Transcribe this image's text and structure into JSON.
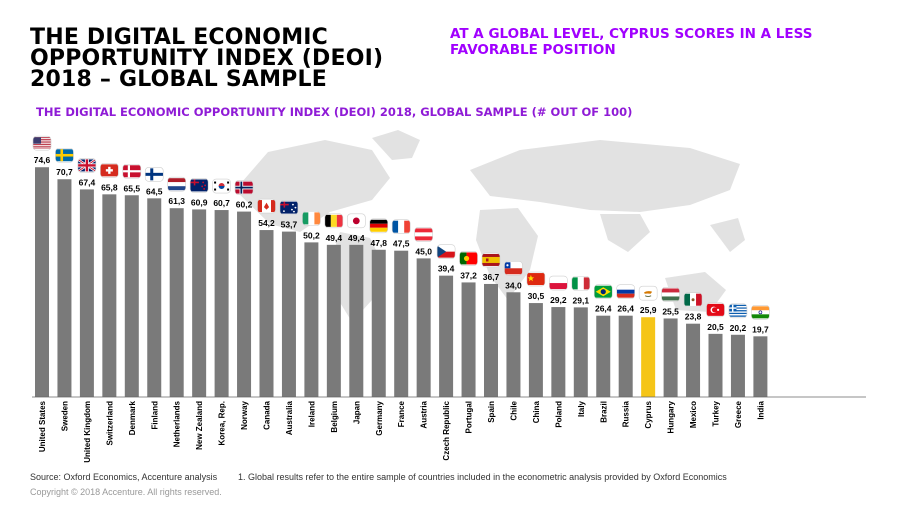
{
  "header": {
    "title_lines": [
      "THE DIGITAL ECONOMIC",
      "OPPORTUNITY INDEX (DEOI)",
      "2018 – GLOBAL SAMPLE"
    ],
    "headline_lines": [
      "AT A GLOBAL LEVEL, CYPRUS SCORES IN A LESS",
      "FAVORABLE POSITION"
    ]
  },
  "colors": {
    "bar": "#7a7a7a",
    "highlight": "#f5c518",
    "title_purple": "#8f1bd6",
    "headline_purple": "#a100ff",
    "map": "#e2e2e2"
  },
  "chart_data": {
    "type": "bar",
    "title": "THE DIGITAL ECONOMIC OPPORTUNITY INDEX (DEOI) 2018, GLOBAL SAMPLE (# OUT OF 100)",
    "xlabel": "",
    "ylabel": "",
    "ylim": [
      0,
      100
    ],
    "grid": false,
    "legend": "none",
    "highlight_category": "Cyprus",
    "categories": [
      "United States",
      "Sweden",
      "United Kingdom",
      "Switzerland",
      "Denmark",
      "Finland",
      "Netherlands",
      "New Zealand",
      "Korea, Rep.",
      "Norway",
      "Canada",
      "Australia",
      "Ireland",
      "Belgium",
      "Japan",
      "Germany",
      "France",
      "Austria",
      "Czech Republic",
      "Portugal",
      "Spain",
      "Chile",
      "China",
      "Poland",
      "Italy",
      "Brazil",
      "Russia",
      "Cyprus",
      "Hungary",
      "Mexico",
      "Turkey",
      "Greece",
      "India"
    ],
    "values": [
      74.6,
      70.7,
      67.4,
      65.8,
      65.5,
      64.5,
      61.3,
      60.9,
      60.7,
      60.2,
      54.2,
      53.7,
      50.2,
      49.4,
      49.4,
      47.8,
      47.5,
      45.0,
      39.4,
      37.2,
      36.7,
      34.0,
      30.5,
      29.2,
      29.1,
      26.4,
      26.4,
      25.9,
      25.5,
      23.8,
      20.5,
      20.2,
      19.7
    ],
    "value_labels": [
      "74,6",
      "70,7",
      "67,4",
      "65,8",
      "65,5",
      "64,5",
      "61,3",
      "60,9",
      "60,7",
      "60,2",
      "54,2",
      "53,7",
      "50,2",
      "49,4",
      "49,4",
      "47,8",
      "47,5",
      "45,0",
      "39,4",
      "37,2",
      "36,7",
      "34,0",
      "30,5",
      "29,2",
      "29,1",
      "26,4",
      "26,4",
      "25,9",
      "25,5",
      "23,8",
      "20,5",
      "20,2",
      "19,7"
    ],
    "flags": [
      "us",
      "se",
      "gb",
      "ch",
      "dk",
      "fi",
      "nl",
      "nz",
      "kr",
      "no",
      "ca",
      "au",
      "ie",
      "be",
      "jp",
      "de",
      "fr",
      "at",
      "cz",
      "pt",
      "es",
      "cl",
      "cn",
      "pl",
      "it",
      "br",
      "ru",
      "cy",
      "hu",
      "mx",
      "tr",
      "gr",
      "in"
    ]
  },
  "footer": {
    "source": "Source: Oxford Economics, Accenture analysis",
    "note": "1. Global results refer to the entire sample of countries included in the econometric analysis provided by Oxford Economics",
    "copyright": "Copyright © 2018 Accenture. All rights reserved."
  }
}
